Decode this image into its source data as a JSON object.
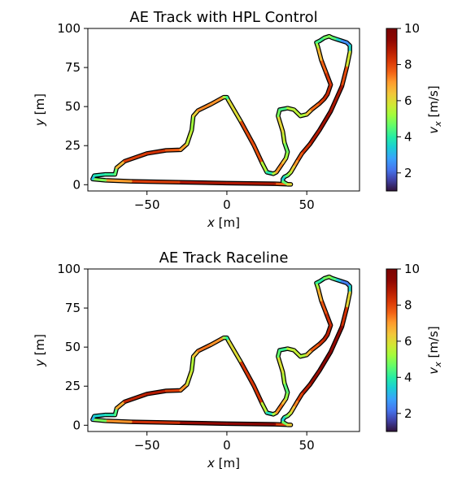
{
  "chart_data": [
    {
      "type": "line",
      "title": "AE Track with HPL Control",
      "xlabel_var": "x",
      "xlabel_unit": " [m]",
      "ylabel_var": "y",
      "ylabel_unit": " [m]",
      "xlim": [
        -87,
        83
      ],
      "ylim": [
        -4,
        100
      ],
      "xticks": [
        -50,
        0,
        50
      ],
      "yticks": [
        0,
        25,
        50,
        75,
        100
      ],
      "grid": false,
      "colorbar": {
        "label_var": "v",
        "label_sub": "x",
        "label_unit": " [m/s]",
        "range": [
          1,
          10
        ],
        "ticks": [
          2,
          4,
          6,
          8,
          10
        ],
        "colormap": "turbo"
      },
      "series": [
        {
          "color_by": "v_x",
          "x": [
            40,
            30,
            0,
            -30,
            -60,
            -76,
            -84,
            -83,
            -76,
            -70,
            -69,
            -64,
            -50,
            -38,
            -29,
            -25,
            -22,
            -21,
            -18,
            -10,
            -2,
            0,
            1,
            9,
            17,
            22,
            25,
            29,
            31,
            33,
            35,
            37,
            38,
            36,
            35,
            32,
            33,
            38,
            42,
            46,
            50,
            53,
            58,
            61,
            63,
            65,
            62,
            59,
            57,
            56,
            58,
            61,
            64,
            66,
            69,
            72,
            75,
            77,
            77,
            75,
            72,
            65,
            58,
            52,
            47,
            44,
            42,
            40,
            38,
            36,
            35,
            35,
            38,
            40
          ],
          "y": [
            0.2,
            0.6,
            1.0,
            1.6,
            2.2,
            2.8,
            3.6,
            5.8,
            6.6,
            6.6,
            10.8,
            15.0,
            20.0,
            22.0,
            22.3,
            26.0,
            35.0,
            44.0,
            47.5,
            51.5,
            56.0,
            56.0,
            54.0,
            40.0,
            25.0,
            14.0,
            8.0,
            7.0,
            8.0,
            11.0,
            14.0,
            17.0,
            21.0,
            27.0,
            34.0,
            44.0,
            48.0,
            49.0,
            48.0,
            44.0,
            45.0,
            48.0,
            52.0,
            55.0,
            58.0,
            64.0,
            72.0,
            80.0,
            88.0,
            91.0,
            92.0,
            94.0,
            95.0,
            94.0,
            93.0,
            92.0,
            91.0,
            89.0,
            85.0,
            75.0,
            63.0,
            47.0,
            35.0,
            26.0,
            20.0,
            15.0,
            11.5,
            8.0,
            6.0,
            5.0,
            3.5,
            2.0,
            0.2,
            0.2
          ],
          "v": [
            6.8,
            8.6,
            9.1,
            8.6,
            7.6,
            6.3,
            3.4,
            3.0,
            4.6,
            3.6,
            5.6,
            7.6,
            8.6,
            8.0,
            7.4,
            6.4,
            4.8,
            5.6,
            6.8,
            7.6,
            6.6,
            3.8,
            4.6,
            7.4,
            8.4,
            7.2,
            3.6,
            4.2,
            6.6,
            7.4,
            7.0,
            5.8,
            4.6,
            4.8,
            6.4,
            5.8,
            3.8,
            4.8,
            6.0,
            5.0,
            5.6,
            7.2,
            7.8,
            8.4,
            8.6,
            8.4,
            8.0,
            7.2,
            6.0,
            4.8,
            3.8,
            4.6,
            5.0,
            4.8,
            4.2,
            2.8,
            2.2,
            2.8,
            4.4,
            7.2,
            8.6,
            9.2,
            9.0,
            8.6,
            8.0,
            7.4,
            6.6,
            5.8,
            5.0,
            4.2,
            3.0,
            3.8,
            5.4,
            6.6
          ]
        }
      ]
    },
    {
      "type": "line",
      "title": "AE Track Raceline",
      "xlabel_var": "x",
      "xlabel_unit": " [m]",
      "ylabel_var": "y",
      "ylabel_unit": " [m]",
      "xlim": [
        -87,
        83
      ],
      "ylim": [
        -4,
        100
      ],
      "xticks": [
        -50,
        0,
        50
      ],
      "yticks": [
        0,
        25,
        50,
        75,
        100
      ],
      "grid": false,
      "colorbar": {
        "label_var": "v",
        "label_sub": "x",
        "label_unit": " [m/s]",
        "range": [
          1,
          10
        ],
        "ticks": [
          2,
          4,
          6,
          8,
          10
        ],
        "colormap": "turbo"
      },
      "series": [
        {
          "color_by": "v_x",
          "x": [
            40,
            30,
            0,
            -30,
            -60,
            -76,
            -84,
            -83,
            -76,
            -70,
            -69,
            -64,
            -50,
            -38,
            -29,
            -25,
            -22,
            -21,
            -18,
            -10,
            -2,
            0,
            1,
            9,
            17,
            22,
            25,
            29,
            31,
            33,
            35,
            37,
            38,
            36,
            35,
            32,
            33,
            38,
            42,
            46,
            50,
            53,
            58,
            61,
            63,
            65,
            62,
            59,
            57,
            56,
            58,
            61,
            64,
            66,
            69,
            72,
            75,
            77,
            77,
            75,
            72,
            65,
            58,
            52,
            47,
            44,
            42,
            40,
            38,
            36,
            35,
            35,
            38,
            40
          ],
          "y": [
            0.2,
            0.6,
            1.0,
            1.6,
            2.2,
            2.8,
            3.6,
            5.8,
            6.6,
            6.6,
            10.8,
            15.0,
            20.0,
            22.0,
            22.3,
            26.0,
            35.0,
            44.0,
            47.5,
            51.5,
            56.0,
            56.0,
            54.0,
            40.0,
            25.0,
            14.0,
            8.0,
            7.0,
            8.0,
            11.0,
            14.0,
            17.0,
            21.0,
            27.0,
            34.0,
            44.0,
            48.0,
            49.0,
            48.0,
            44.0,
            45.0,
            48.0,
            52.0,
            55.0,
            58.0,
            64.0,
            72.0,
            80.0,
            88.0,
            91.0,
            92.0,
            94.0,
            95.0,
            94.0,
            93.0,
            92.0,
            91.0,
            89.0,
            85.0,
            75.0,
            63.0,
            47.0,
            35.0,
            26.0,
            20.0,
            15.0,
            11.5,
            8.0,
            6.0,
            5.0,
            3.5,
            2.0,
            0.2,
            0.2
          ],
          "v": [
            7.0,
            9.2,
            9.6,
            9.0,
            7.8,
            6.4,
            3.2,
            2.8,
            4.2,
            3.4,
            5.4,
            8.2,
            9.0,
            8.6,
            7.6,
            6.6,
            5.0,
            5.8,
            7.0,
            7.8,
            6.4,
            3.6,
            4.4,
            7.6,
            8.8,
            7.6,
            3.4,
            4.0,
            6.6,
            7.6,
            7.2,
            5.8,
            4.4,
            4.6,
            6.2,
            5.6,
            3.6,
            4.8,
            6.2,
            5.0,
            5.6,
            7.4,
            8.0,
            8.6,
            8.8,
            8.6,
            8.2,
            7.4,
            6.0,
            4.6,
            3.6,
            4.4,
            5.2,
            4.8,
            4.0,
            2.6,
            2.0,
            2.6,
            4.6,
            7.6,
            9.0,
            9.6,
            9.4,
            9.0,
            8.4,
            7.6,
            6.8,
            6.0,
            5.2,
            4.2,
            3.0,
            3.8,
            5.6,
            6.8
          ]
        }
      ]
    }
  ]
}
